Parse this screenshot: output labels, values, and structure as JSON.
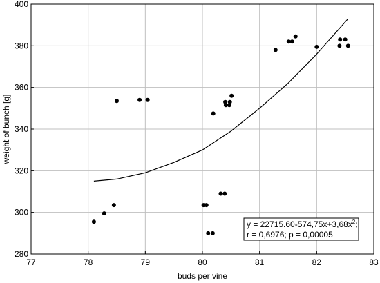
{
  "chart_data": {
    "type": "scatter",
    "xlabel": "buds per vine",
    "ylabel": "weight of bunch [g]",
    "xlim": [
      77,
      83
    ],
    "ylim": [
      280,
      400
    ],
    "xticks": [
      77,
      78,
      79,
      80,
      81,
      82,
      83
    ],
    "yticks": [
      280,
      300,
      320,
      340,
      360,
      380,
      400
    ],
    "grid": true,
    "points": [
      {
        "x": 78.1,
        "y": 295.5
      },
      {
        "x": 78.28,
        "y": 299.5
      },
      {
        "x": 78.45,
        "y": 303.5
      },
      {
        "x": 78.5,
        "y": 353.5
      },
      {
        "x": 78.9,
        "y": 354
      },
      {
        "x": 79.04,
        "y": 354
      },
      {
        "x": 80.02,
        "y": 303.5
      },
      {
        "x": 80.07,
        "y": 303.5
      },
      {
        "x": 80.1,
        "y": 290
      },
      {
        "x": 80.18,
        "y": 290
      },
      {
        "x": 80.19,
        "y": 347.5
      },
      {
        "x": 80.32,
        "y": 309
      },
      {
        "x": 80.39,
        "y": 309
      },
      {
        "x": 80.4,
        "y": 353
      },
      {
        "x": 80.41,
        "y": 351.5
      },
      {
        "x": 80.47,
        "y": 351.5
      },
      {
        "x": 80.48,
        "y": 353
      },
      {
        "x": 80.51,
        "y": 356
      },
      {
        "x": 81.28,
        "y": 378
      },
      {
        "x": 81.51,
        "y": 382
      },
      {
        "x": 81.57,
        "y": 382
      },
      {
        "x": 81.63,
        "y": 384.5
      },
      {
        "x": 82.0,
        "y": 379.5
      },
      {
        "x": 82.4,
        "y": 380
      },
      {
        "x": 82.41,
        "y": 383
      },
      {
        "x": 82.5,
        "y": 383
      },
      {
        "x": 82.55,
        "y": 380
      }
    ],
    "fit": {
      "type": "quadratic",
      "x_range": [
        78.1,
        82.55
      ],
      "points": [
        {
          "x": 78.1,
          "y": 315
        },
        {
          "x": 78.5,
          "y": 316
        },
        {
          "x": 79.0,
          "y": 319
        },
        {
          "x": 79.5,
          "y": 324
        },
        {
          "x": 80.0,
          "y": 330
        },
        {
          "x": 80.5,
          "y": 339
        },
        {
          "x": 81.0,
          "y": 350
        },
        {
          "x": 81.5,
          "y": 362
        },
        {
          "x": 82.0,
          "y": 376
        },
        {
          "x": 82.55,
          "y": 393
        }
      ]
    },
    "annotation": {
      "placement": "bottom-right",
      "line1_main": "y = 22715.60-574,75x+3,68x",
      "line1_sup": "2",
      "line1_end": ";",
      "line2": "r = 0,6976; p = 0,00005"
    },
    "colors": {
      "point": "#000000",
      "line": "#000000",
      "grid": "#bfbfbf"
    }
  }
}
